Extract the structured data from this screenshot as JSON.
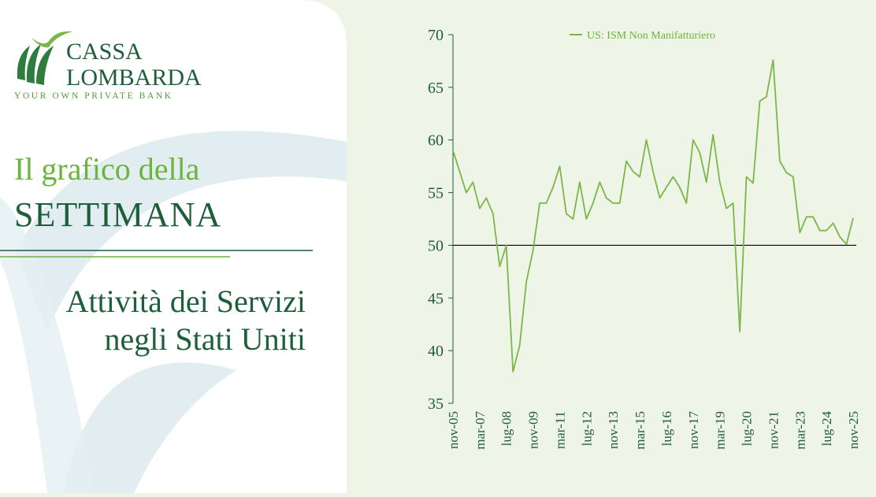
{
  "brand": {
    "name_line1": "CASSA",
    "name_line2": "LOMBARDA",
    "tagline": "YOUR OWN PRIVATE BANK"
  },
  "headline": {
    "line1": "Il grafico della",
    "line2": "SETTIMANA"
  },
  "subtitle": {
    "line1": "Attività dei Servizi",
    "line2": "negli Stati Uniti"
  },
  "chart_data": {
    "type": "line",
    "categories": [
      "nov-05",
      null,
      null,
      null,
      "mar-07",
      null,
      null,
      null,
      "lug-08",
      null,
      null,
      null,
      "nov-09",
      null,
      null,
      null,
      "mar-11",
      null,
      null,
      null,
      "lug-12",
      null,
      null,
      null,
      "nov-13",
      null,
      null,
      null,
      "mar-15",
      null,
      null,
      null,
      "lug-16",
      null,
      null,
      null,
      "nov-17",
      null,
      null,
      null,
      "mar-19",
      null,
      null,
      null,
      "lug-20",
      null,
      null,
      null,
      "nov-21",
      null,
      null,
      null,
      "mar-23",
      null,
      null,
      null,
      "lug-24",
      null,
      null,
      null,
      "nov-25"
    ],
    "series": [
      {
        "name": "US: ISM Non Manifatturiero",
        "color": "#7ab648",
        "values": [
          59,
          57,
          55,
          56,
          53.5,
          54.5,
          53,
          48,
          50,
          38,
          40.5,
          46.5,
          49.5,
          54,
          54,
          55.5,
          57.5,
          53,
          52.5,
          56,
          52.5,
          54,
          56,
          54.5,
          54,
          54,
          58,
          57,
          56.5,
          60,
          57,
          54.5,
          55.5,
          56.5,
          55.5,
          54,
          60,
          58.8,
          56,
          60.5,
          56,
          53.5,
          54,
          41.8,
          56.5,
          55.9,
          63.7,
          64.1,
          67.6,
          58,
          56.9,
          56.5,
          51.2,
          52.7,
          52.7,
          51.4,
          51.4,
          52.1,
          50.8,
          50.1,
          52.6
        ]
      }
    ],
    "reference_line": 50,
    "ylim": [
      35,
      70
    ],
    "yticks": [
      35,
      40,
      45,
      50,
      55,
      60,
      65,
      70
    ],
    "legend": "top-center"
  }
}
